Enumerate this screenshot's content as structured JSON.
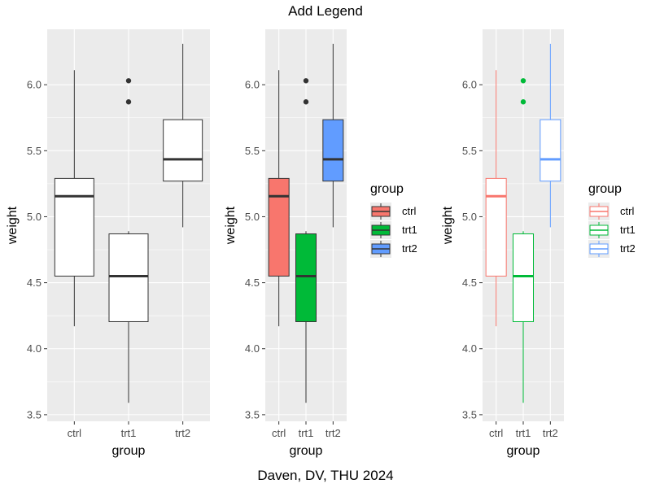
{
  "title": "Add Legend",
  "caption": "Daven, DV, THU 2024",
  "chart_data": [
    {
      "type": "boxplot",
      "fill_mode": "none",
      "xlabel": "group",
      "ylabel": "weight",
      "ylim": [
        3.45,
        6.42
      ],
      "yticks": [
        3.5,
        4.0,
        4.5,
        5.0,
        5.5,
        6.0
      ],
      "ytick_labels": [
        "3.5",
        "4.0",
        "4.5",
        "5.0",
        "5.5",
        "6.0"
      ],
      "grid": true,
      "legend": null,
      "categories": [
        "ctrl",
        "trt1",
        "trt2"
      ],
      "boxes": [
        {
          "group": "ctrl",
          "whisker_low": 4.17,
          "q1": 4.55,
          "median": 5.155,
          "q3": 5.29,
          "whisker_high": 6.11,
          "outliers": []
        },
        {
          "group": "trt1",
          "whisker_low": 3.59,
          "q1": 4.205,
          "median": 4.55,
          "q3": 4.87,
          "whisker_high": 4.89,
          "outliers": [
            5.87,
            6.03
          ]
        },
        {
          "group": "trt2",
          "whisker_low": 4.92,
          "q1": 5.27,
          "median": 5.435,
          "q3": 5.735,
          "whisker_high": 6.31,
          "outliers": []
        }
      ]
    },
    {
      "type": "boxplot",
      "fill_mode": "fill",
      "xlabel": "group",
      "ylabel": "weight",
      "ylim": [
        3.45,
        6.42
      ],
      "yticks": [
        3.5,
        4.0,
        4.5,
        5.0,
        5.5,
        6.0
      ],
      "ytick_labels": [
        "3.5",
        "4.0",
        "4.5",
        "5.0",
        "5.5",
        "6.0"
      ],
      "grid": true,
      "legend": {
        "title": "group",
        "placement": "right",
        "entries": [
          "ctrl",
          "trt1",
          "trt2"
        ]
      },
      "categories": [
        "ctrl",
        "trt1",
        "trt2"
      ],
      "colors": [
        "#F8766D",
        "#00BA38",
        "#619CFF"
      ],
      "boxes": [
        {
          "group": "ctrl",
          "whisker_low": 4.17,
          "q1": 4.55,
          "median": 5.155,
          "q3": 5.29,
          "whisker_high": 6.11,
          "outliers": []
        },
        {
          "group": "trt1",
          "whisker_low": 3.59,
          "q1": 4.205,
          "median": 4.55,
          "q3": 4.87,
          "whisker_high": 4.89,
          "outliers": [
            5.87,
            6.03
          ]
        },
        {
          "group": "trt2",
          "whisker_low": 4.92,
          "q1": 5.27,
          "median": 5.435,
          "q3": 5.735,
          "whisker_high": 6.31,
          "outliers": []
        }
      ]
    },
    {
      "type": "boxplot",
      "fill_mode": "color",
      "xlabel": "group",
      "ylabel": "weight",
      "ylim": [
        3.45,
        6.42
      ],
      "yticks": [
        3.5,
        4.0,
        4.5,
        5.0,
        5.5,
        6.0
      ],
      "ytick_labels": [
        "3.5",
        "4.0",
        "4.5",
        "5.0",
        "5.5",
        "6.0"
      ],
      "grid": true,
      "legend": {
        "title": "group",
        "placement": "right",
        "entries": [
          "ctrl",
          "trt1",
          "trt2"
        ]
      },
      "categories": [
        "ctrl",
        "trt1",
        "trt2"
      ],
      "colors": [
        "#F8766D",
        "#00BA38",
        "#619CFF"
      ],
      "boxes": [
        {
          "group": "ctrl",
          "whisker_low": 4.17,
          "q1": 4.55,
          "median": 5.155,
          "q3": 5.29,
          "whisker_high": 6.11,
          "outliers": []
        },
        {
          "group": "trt1",
          "whisker_low": 3.59,
          "q1": 4.205,
          "median": 4.55,
          "q3": 4.87,
          "whisker_high": 4.89,
          "outliers": [
            5.87,
            6.03
          ]
        },
        {
          "group": "trt2",
          "whisker_low": 4.92,
          "q1": 5.27,
          "median": 5.435,
          "q3": 5.735,
          "whisker_high": 6.31,
          "outliers": []
        }
      ]
    }
  ]
}
